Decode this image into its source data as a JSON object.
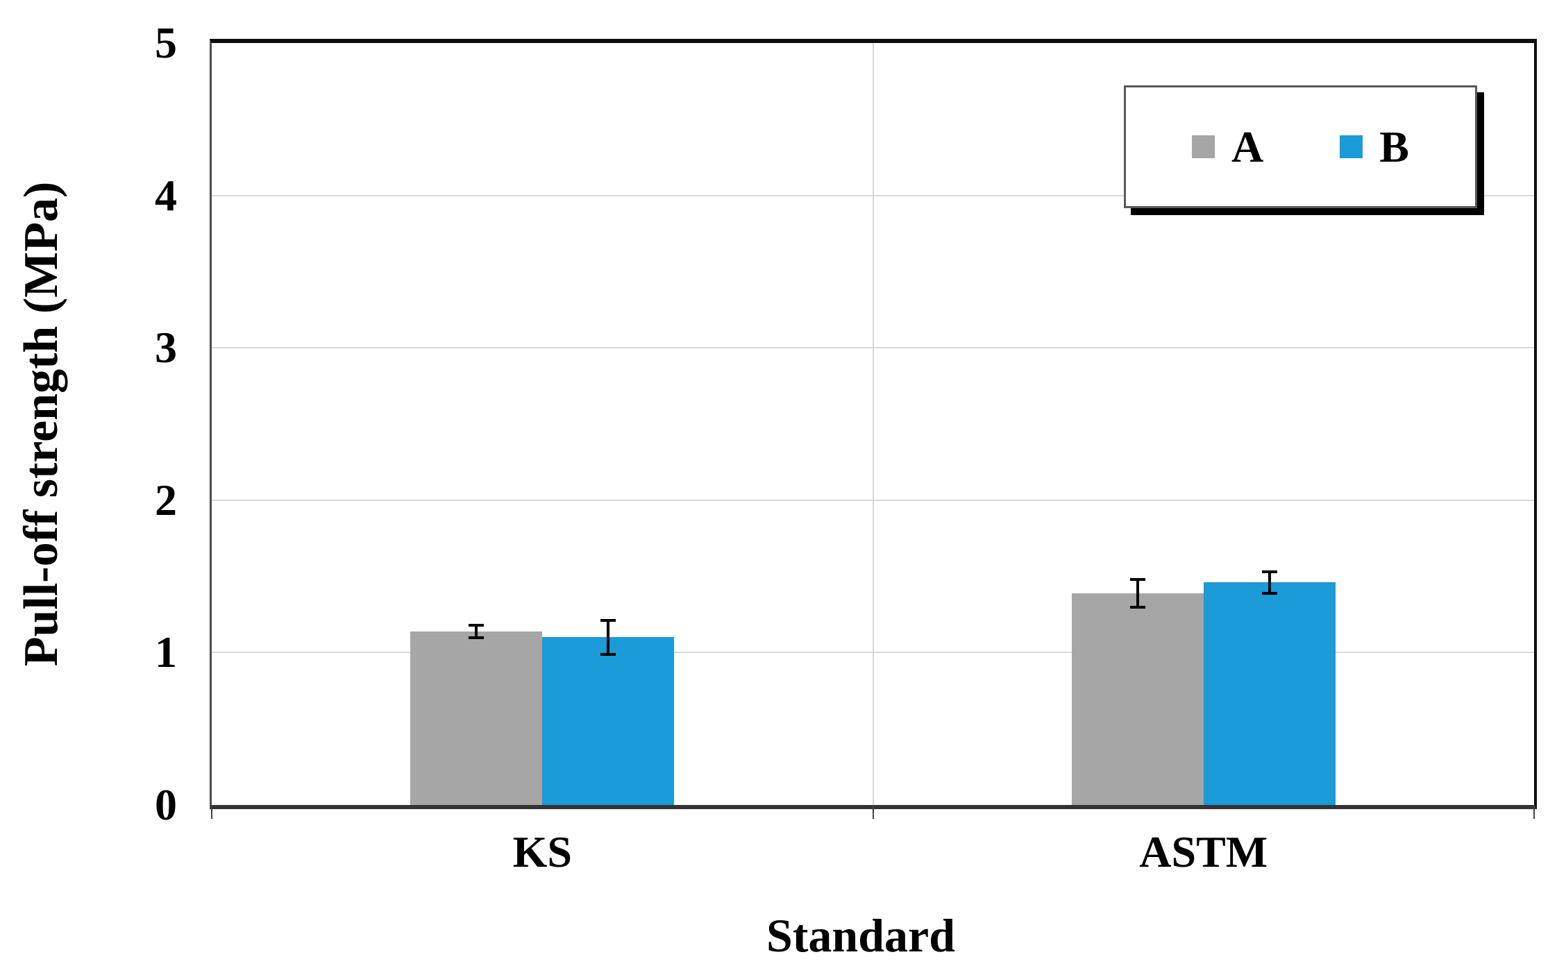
{
  "chart_data": {
    "type": "bar",
    "title": "",
    "categories": [
      "KS",
      "ASTM"
    ],
    "series": [
      {
        "name": "A",
        "color": "#a6a6a6",
        "values": [
          1.14,
          1.39
        ],
        "error_bars": [
          0.05,
          0.1
        ]
      },
      {
        "name": "B",
        "color": "#1b9bd8",
        "values": [
          1.1,
          1.46
        ],
        "error_bars": [
          0.12,
          0.08
        ]
      }
    ],
    "xlabel": "Standard",
    "ylabel": "Pull-off strength (MPa)",
    "ylim": [
      0,
      5
    ],
    "y_tick_labels": [
      "0",
      "1",
      "2",
      "3",
      "4",
      "5"
    ],
    "grid": {
      "horizontal_major": true,
      "vertical_category_boundary": true,
      "color": "#d9d9d9"
    },
    "legend": {
      "position": "top-right-inside",
      "labels": [
        "A",
        "B"
      ],
      "shadow": true
    },
    "error_bar_color": "#000000"
  },
  "colors": {
    "background": "#ffffff",
    "axis_line": "#0d0d0d",
    "gridline": "#d9d9d9"
  }
}
